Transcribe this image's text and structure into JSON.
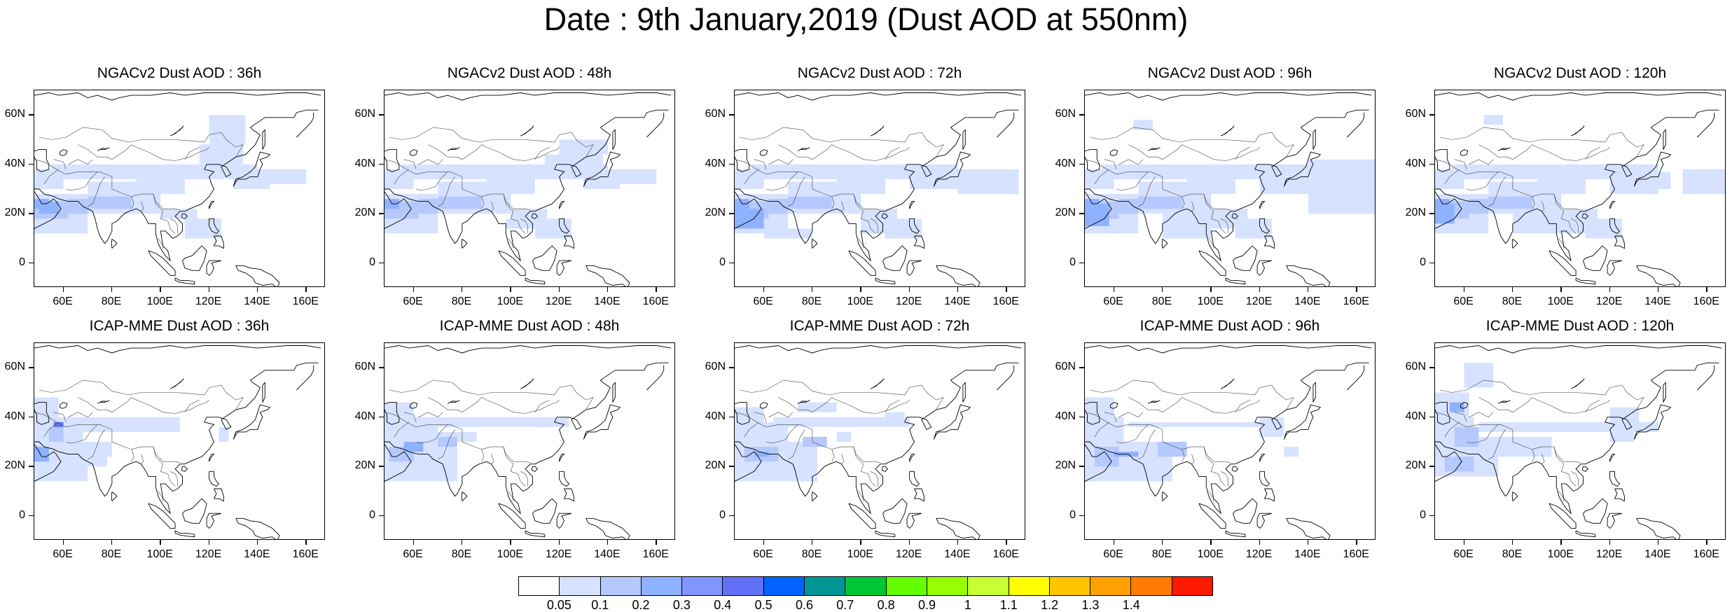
{
  "title": "Date : 9th January,2019 (Dust AOD at 550nm)",
  "lat_labels": [
    "60N",
    "40N",
    "20N",
    "0"
  ],
  "lon_labels": [
    "60E",
    "80E",
    "100E",
    "120E",
    "140E",
    "160E"
  ],
  "map_extent": {
    "lon_min": 48,
    "lon_max": 168,
    "lat_min": -10,
    "lat_max": 70
  },
  "panels": [
    {
      "title": "NGACv2 Dust AOD : 36h",
      "model": "NGACv2",
      "lead": "36h"
    },
    {
      "title": "NGACv2 Dust AOD : 48h",
      "model": "NGACv2",
      "lead": "48h"
    },
    {
      "title": "NGACv2 Dust AOD : 72h",
      "model": "NGACv2",
      "lead": "72h"
    },
    {
      "title": "NGACv2 Dust AOD : 96h",
      "model": "NGACv2",
      "lead": "96h"
    },
    {
      "title": "NGACv2 Dust AOD : 120h",
      "model": "NGACv2",
      "lead": "120h"
    },
    {
      "title": "ICAP-MME Dust AOD : 36h",
      "model": "ICAP-MME",
      "lead": "36h"
    },
    {
      "title": "ICAP-MME Dust AOD : 48h",
      "model": "ICAP-MME",
      "lead": "48h"
    },
    {
      "title": "ICAP-MME Dust AOD : 72h",
      "model": "ICAP-MME",
      "lead": "72h"
    },
    {
      "title": "ICAP-MME Dust AOD : 96h",
      "model": "ICAP-MME",
      "lead": "96h"
    },
    {
      "title": "ICAP-MME Dust AOD : 120h",
      "model": "ICAP-MME",
      "lead": "120h"
    }
  ],
  "colorbar": {
    "labels": [
      "0.05",
      "0.1",
      "0.2",
      "0.3",
      "0.4",
      "0.5",
      "0.6",
      "0.7",
      "0.8",
      "0.9",
      "1",
      "1.1",
      "1.2",
      "1.3",
      "1.4"
    ],
    "colors": [
      "#ffffff",
      "#d6e2ff",
      "#b5c9ff",
      "#8eb2ff",
      "#7f96ff",
      "#6370f8",
      "#0063ff",
      "#009696",
      "#00c633",
      "#63ff00",
      "#96ff00",
      "#c6ff33",
      "#ffff00",
      "#ffc600",
      "#ffa000",
      "#ff7c00",
      "#ff1900"
    ]
  }
}
